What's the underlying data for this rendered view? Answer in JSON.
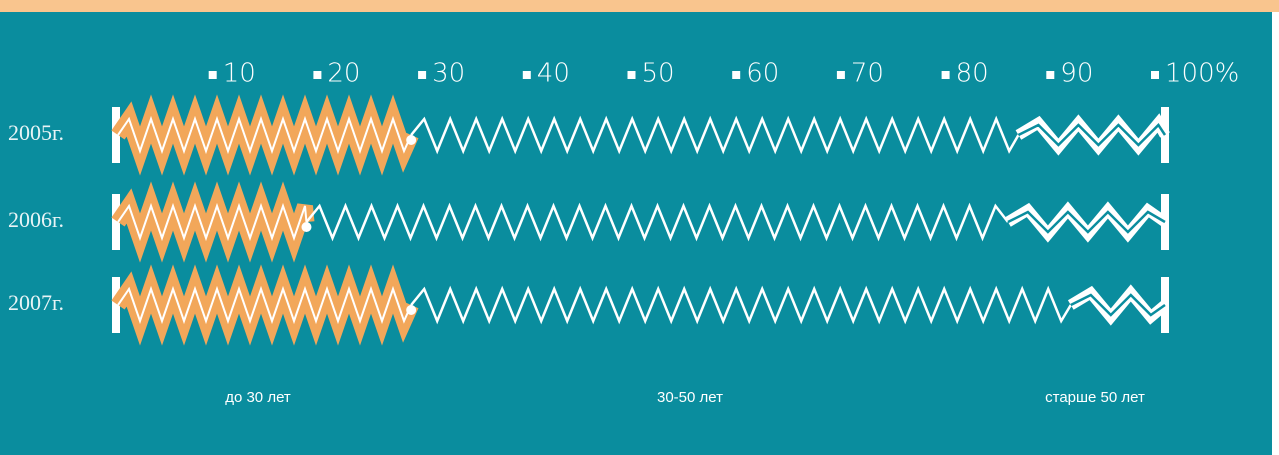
{
  "chart_data": {
    "type": "stacked-bar-horizontal",
    "categories": [
      "2005г.",
      "2006г.",
      "2007г."
    ],
    "series": [
      {
        "name": "до 30 лет",
        "color": "#f2a75a",
        "values": [
          28,
          18,
          28
        ]
      },
      {
        "name": "30-50 лет",
        "color": "#ffffff",
        "values": [
          58,
          67,
          63
        ]
      },
      {
        "name": "старше 50 лет",
        "color": "#ffffff",
        "values": [
          14,
          15,
          9
        ]
      }
    ],
    "xlim": [
      0,
      100
    ],
    "xticks": [
      10,
      20,
      30,
      40,
      50,
      60,
      70,
      80,
      90,
      {
        "value": 100,
        "label": "100%"
      }
    ]
  }
}
